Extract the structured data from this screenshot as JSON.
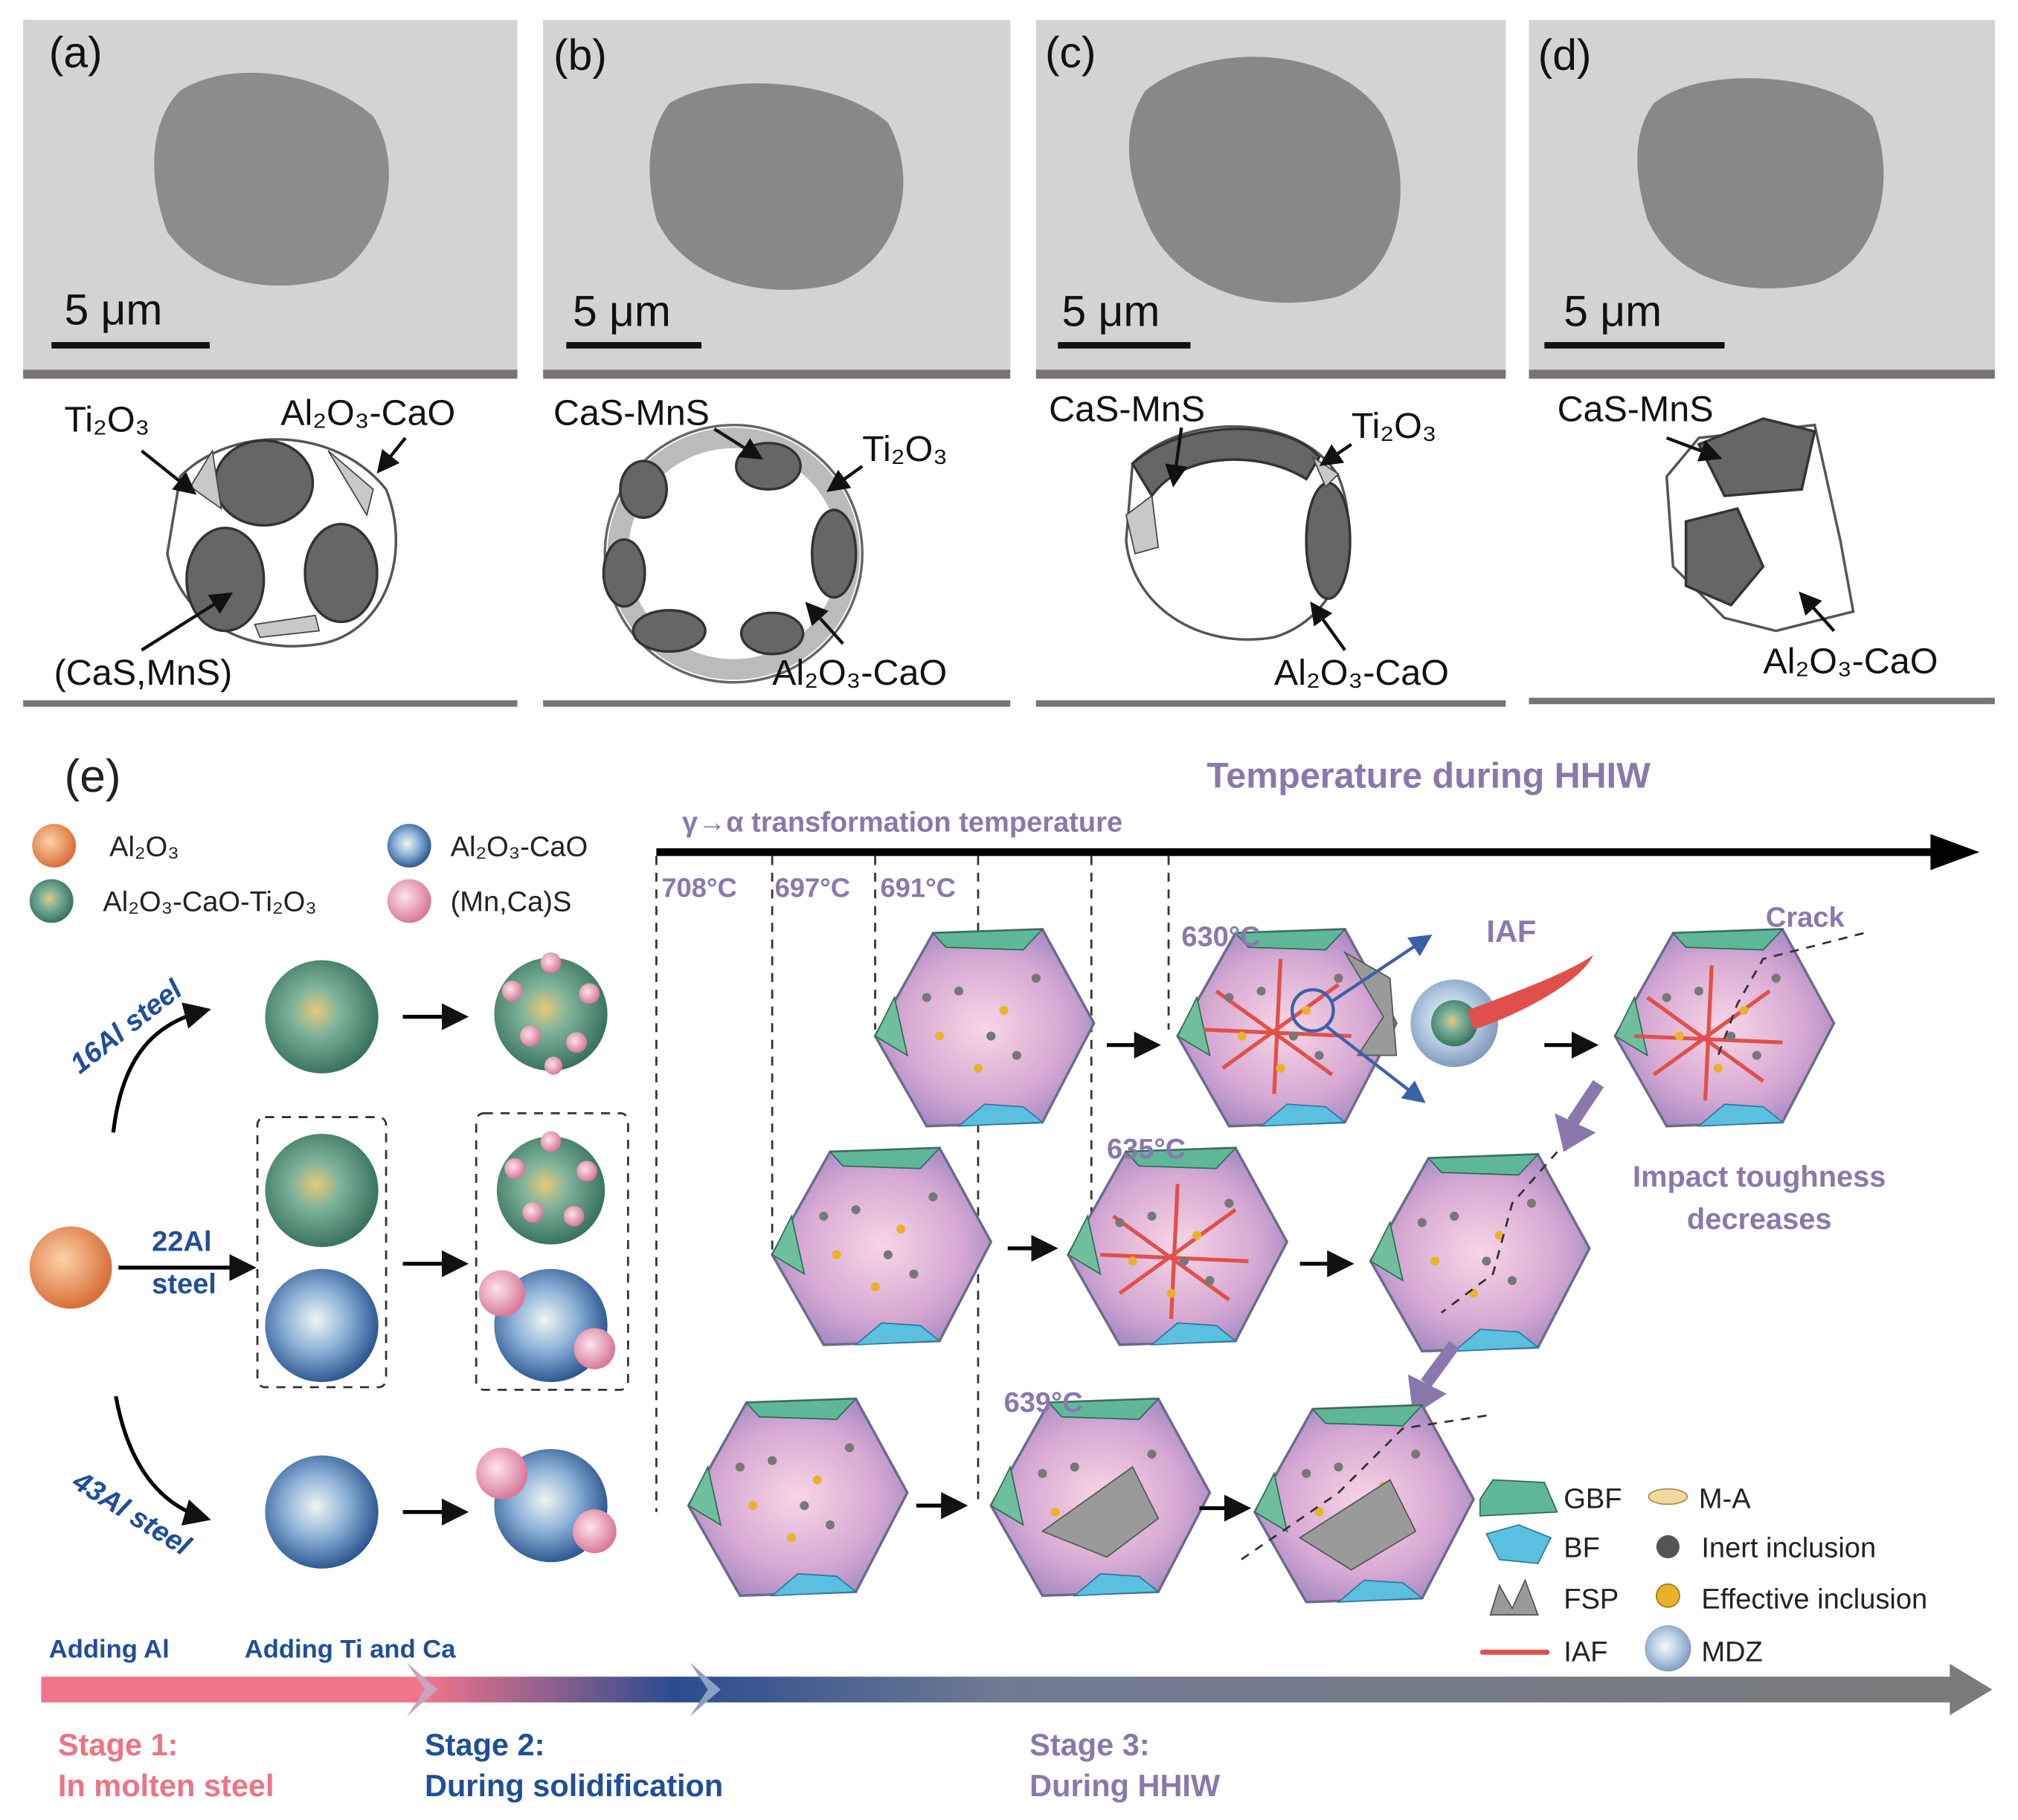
{
  "panels": [
    {
      "label": "(a)",
      "scale_bar": "5 μm",
      "labels": [
        "Ti₂O₃",
        "Al₂O₃-CaO",
        "(CaS,MnS)"
      ]
    },
    {
      "label": "(b)",
      "scale_bar": "5 μm",
      "labels": [
        "CaS-MnS",
        "Ti₂O₃",
        "Al₂O₃-CaO"
      ]
    },
    {
      "label": "(c)",
      "scale_bar": "5 μm",
      "labels": [
        "CaS-MnS",
        "Ti₂O₃",
        "Al₂O₃-CaO"
      ]
    },
    {
      "label": "(d)",
      "scale_bar": "5 μm",
      "labels": [
        "CaS-MnS",
        "Al₂O₃-CaO"
      ]
    }
  ],
  "schematic": {
    "label": "(e)",
    "title": "Temperature during HHIW",
    "axis_label": "γ→α transformation temperature",
    "inclusion_legend": [
      "Al₂O₃",
      "Al₂O₃-CaO",
      "Al₂O₃-CaO-Ti₂O₃",
      "(Mn,Ca)S"
    ],
    "steels": [
      "16Al steel",
      [
        "22Al",
        "steel"
      ],
      "43Al steel"
    ],
    "start_temperatures": [
      "708°C",
      "697°C",
      "691°C"
    ],
    "transformation_temperatures": [
      "630°C",
      "635°C",
      "639°C"
    ],
    "iaf_label": "IAF",
    "crack_label": "Crack",
    "toughness_note": [
      "Impact toughness",
      "decreases"
    ],
    "phase_legend": [
      "GBF",
      "M-A",
      "BF",
      "Inert inclusion",
      "FSP",
      "Effective inclusion",
      "IAF",
      "MDZ"
    ],
    "process_steps": [
      "Adding Al",
      "Adding Ti and Ca"
    ],
    "stages": [
      {
        "name": "Stage 1:",
        "description": "In molten steel"
      },
      {
        "name": "Stage 2:",
        "description": "During solidification"
      },
      {
        "name": "Stage 3:",
        "description": "During HHIW"
      }
    ]
  }
}
